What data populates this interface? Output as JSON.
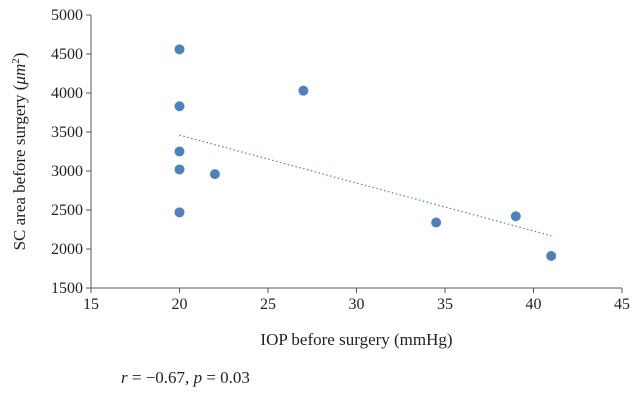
{
  "chart_data": {
    "type": "scatter",
    "title": "",
    "xlabel": "IOP before surgery (mmHg)",
    "ylabel_prefix": "SC area before surgery (",
    "ylabel_unit_base": "μm",
    "ylabel_unit_exp": "2",
    "ylabel_suffix": ")",
    "xlim": [
      15,
      45
    ],
    "ylim": [
      1500,
      5000
    ],
    "xticks": [
      15,
      20,
      25,
      30,
      35,
      40,
      45
    ],
    "yticks": [
      1500,
      2000,
      2500,
      3000,
      3500,
      4000,
      4500,
      5000
    ],
    "grid": false,
    "series": [
      {
        "x": [
          20,
          20,
          20,
          20,
          20,
          22,
          27,
          34.5,
          39,
          41
        ],
        "y": [
          4560,
          3830,
          3250,
          3020,
          2470,
          2960,
          4030,
          2340,
          2420,
          1910
        ],
        "color": "#4f81bd",
        "trendline": {
          "type": "linear",
          "x_range": [
            20,
            41
          ],
          "y_range": [
            3460,
            2170
          ],
          "color": "#4f81bd",
          "style": "dotted"
        }
      }
    ]
  },
  "annotation": {
    "r_symbol": "r",
    "r_text": " = −0.67, ",
    "p_symbol": "p",
    "p_text": " = 0.03"
  }
}
